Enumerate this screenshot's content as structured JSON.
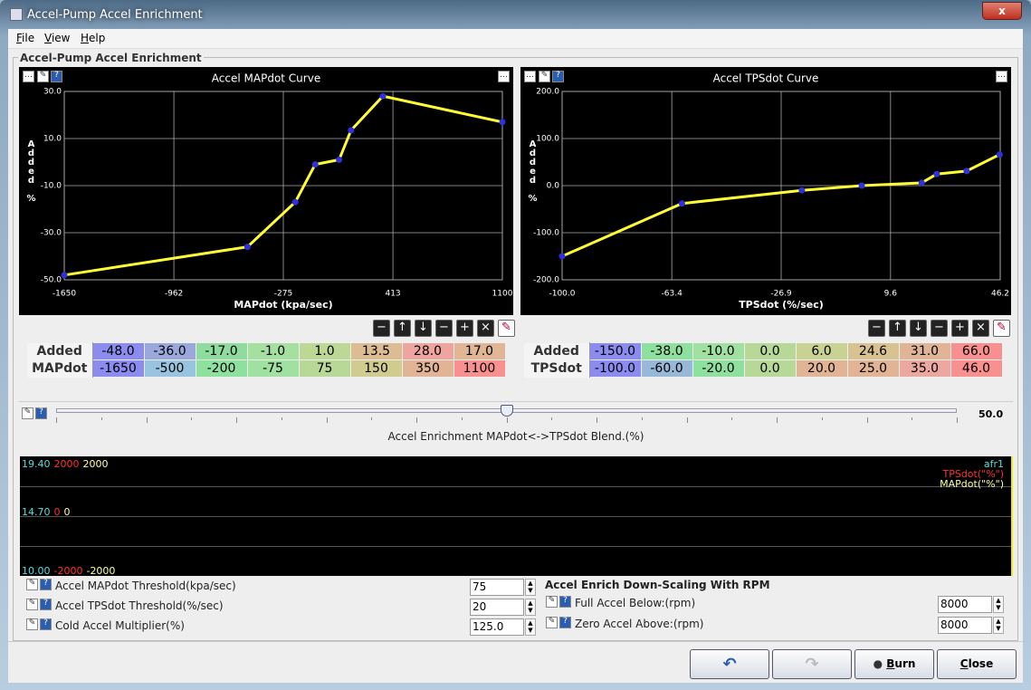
{
  "window": {
    "title": "Accel-Pump Accel Enrichment"
  },
  "menu": [
    "File",
    "View",
    "Help"
  ],
  "panel": {
    "title": "Accel-Pump Accel Enrichment"
  },
  "chart_data": [
    {
      "type": "line",
      "title": "Accel MAPdot Curve",
      "x_label": "MAPdot (kpa/sec)",
      "y_label": "Added %",
      "x": [
        -1650,
        -500,
        -200,
        -75,
        75,
        150,
        350,
        1100
      ],
      "values": [
        -48,
        -36,
        -17,
        -1,
        1,
        13.5,
        28,
        17
      ],
      "color": "#ffff33",
      "marker_color": "#3030e0",
      "grid": true,
      "xlim": [
        -1650,
        1100
      ],
      "xticks": [
        -1650,
        -962,
        -275,
        413,
        1100
      ],
      "ylim": [
        -50,
        30
      ],
      "yticks": [
        {
          "value": -50,
          "label": "-50.0"
        },
        {
          "value": -30,
          "label": "-30.0"
        },
        {
          "value": -10,
          "label": "-10.0"
        },
        {
          "value": 10,
          "label": "10.0"
        },
        {
          "value": 30,
          "label": "30.0"
        }
      ]
    },
    {
      "type": "line",
      "title": "Accel TPSdot Curve",
      "x_label": "TPSdot (%/sec)",
      "y_label": "Added %",
      "x": [
        -100,
        -60,
        -20,
        0,
        20,
        25,
        35,
        46
      ],
      "values": [
        -150,
        -38,
        -10,
        0,
        6,
        24.6,
        31,
        66
      ],
      "color": "#ffff33",
      "marker_color": "#3030e0",
      "grid": true,
      "xlim": [
        -100,
        46.2
      ],
      "xticks": [
        {
          "value": -100,
          "label": "-100.0"
        },
        {
          "value": -63.4,
          "label": "-63.4"
        },
        {
          "value": -26.9,
          "label": "-26.9"
        },
        {
          "value": 9.6,
          "label": "9.6"
        },
        {
          "value": 46.2,
          "label": "46.2"
        }
      ],
      "ylim": [
        -200,
        200
      ],
      "yticks": [
        {
          "value": -200,
          "label": "-200.0"
        },
        {
          "value": -100,
          "label": "-100.0"
        },
        {
          "value": 0,
          "label": "0.0"
        },
        {
          "value": 100,
          "label": "100.0"
        },
        {
          "value": 200,
          "label": "200.0"
        }
      ]
    }
  ],
  "tables": [
    {
      "row_headers": [
        "Added",
        "MAPdot"
      ],
      "rows": [
        [
          "-48.0",
          "-36.0",
          "-17.0",
          "-1.0",
          "1.0",
          "13.5",
          "28.0",
          "17.0"
        ],
        [
          "-1650",
          "-500",
          "-200",
          "-75",
          "75",
          "150",
          "350",
          "1100"
        ]
      ],
      "colors": [
        [
          "#8c8cf0",
          "#9aa8dc",
          "#8edc9e",
          "#a6e0a0",
          "#bcd894",
          "#dcbc92",
          "#f0a4a0",
          "#e0b694"
        ],
        [
          "#8c8cf0",
          "#98c4e0",
          "#8ee09e",
          "#a0e0a0",
          "#b8d898",
          "#d0cc90",
          "#e0b494",
          "#f89090"
        ]
      ]
    },
    {
      "row_headers": [
        "Added",
        "TPSdot"
      ],
      "rows": [
        [
          "-150.0",
          "-38.0",
          "-10.0",
          "0.0",
          "6.0",
          "24.6",
          "31.0",
          "66.0"
        ],
        [
          "-100.0",
          "-60.0",
          "-20.0",
          "0.0",
          "20.0",
          "25.0",
          "35.0",
          "46.0"
        ]
      ],
      "colors": [
        [
          "#8c8cf0",
          "#8ee09e",
          "#a0e0a0",
          "#b8d898",
          "#c8d292",
          "#d8c292",
          "#e0b494",
          "#f89090"
        ],
        [
          "#8c8cf0",
          "#98b8d8",
          "#8ee09e",
          "#b8d898",
          "#e0b494",
          "#e0b494",
          "#eaa8a0",
          "#f89090"
        ]
      ]
    }
  ],
  "slider": {
    "label": "Accel Enrichment MAPdot<->TPSdot Blend.(%)",
    "value": "50.0"
  },
  "log": {
    "traces": [
      {
        "name": "afr1",
        "color": "#55dddd",
        "labels": [
          "19.40",
          "14.70",
          "10.00"
        ]
      },
      {
        "name": "TPSdot(\"%\")",
        "color": "#ff3030",
        "labels": [
          "2000",
          "0",
          "-2000"
        ]
      },
      {
        "name": "MAPdot(\"%\")",
        "color": "#ffffa0",
        "labels": [
          "2000",
          "0",
          "-2000"
        ]
      }
    ]
  },
  "settings_left": [
    {
      "label": "Accel MAPdot Threshold(kpa/sec)",
      "value": "75"
    },
    {
      "label": "Accel TPSdot Threshold(%/sec)",
      "value": "20"
    },
    {
      "label": "Cold Accel Multiplier(%)",
      "value": "125.0"
    }
  ],
  "settings_right": {
    "title": "Accel Enrich Down-Scaling With RPM",
    "rows": [
      {
        "label": "Full Accel Below:(rpm)",
        "value": "8000"
      },
      {
        "label": "Zero Accel Above:(rpm)",
        "value": "8000"
      }
    ]
  },
  "buttons": [
    "Burn",
    "Close"
  ]
}
